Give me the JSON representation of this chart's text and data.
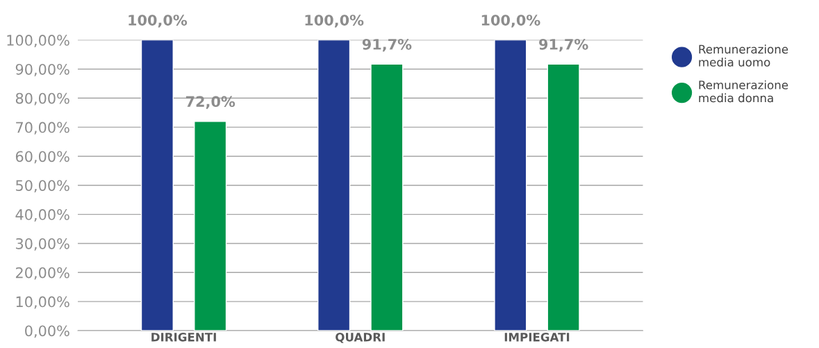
{
  "chart_data": {
    "type": "bar",
    "categories": [
      "DIRIGENTI",
      "QUADRI",
      "IMPIEGATI"
    ],
    "series": [
      {
        "name": "Remunerazione media uomo",
        "color": "#213a8f",
        "values": [
          100,
          100,
          100
        ],
        "value_labels": [
          "100,0%",
          "100,0%",
          "100,0%"
        ]
      },
      {
        "name": "Remunerazione media donna",
        "color": "#00964b",
        "values": [
          72,
          91.7,
          91.7
        ],
        "value_labels": [
          "72,0%",
          "91,7%",
          "91,7%"
        ]
      }
    ],
    "ylim": [
      0,
      100
    ],
    "yticks": [
      {
        "value": 0,
        "label": "0,00%"
      },
      {
        "value": 10,
        "label": "10,00%"
      },
      {
        "value": 20,
        "label": "20,00%"
      },
      {
        "value": 30,
        "label": "30,00%"
      },
      {
        "value": 40,
        "label": "40,00%"
      },
      {
        "value": 50,
        "label": "50,00%"
      },
      {
        "value": 60,
        "label": "60,00%"
      },
      {
        "value": 70,
        "label": "70,00%"
      },
      {
        "value": 80,
        "label": "80,00%"
      },
      {
        "value": 90,
        "label": "90,00%"
      },
      {
        "value": 100,
        "label": "100,00%"
      }
    ],
    "grid": "y",
    "legend": "right",
    "marker": "circle"
  }
}
